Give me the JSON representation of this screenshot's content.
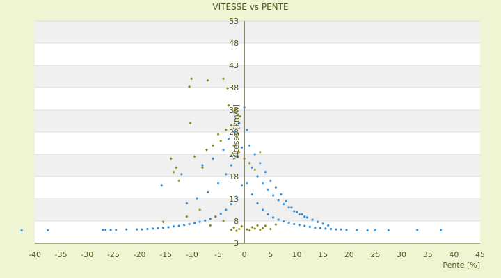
{
  "chart_data": {
    "type": "scatter",
    "title": "VITESSE vs PENTE",
    "xlabel": "Pente [%]",
    "ylabel": "Vitesse [km/h]",
    "xlim": [
      -40,
      45
    ],
    "ylim": [
      3,
      53
    ],
    "x_ticks": [
      "-40",
      "-35",
      "-30",
      "-25",
      "-20",
      "-15",
      "-10",
      "-5",
      "0",
      "5",
      "10",
      "15",
      "20",
      "25",
      "30",
      "35",
      "40",
      "45"
    ],
    "y_ticks": [
      "3",
      "8",
      "13",
      "18",
      "23",
      "28",
      "33",
      "38",
      "43",
      "48",
      "53"
    ],
    "grid": "horizontal bands",
    "legend": "none",
    "colors": {
      "background": "#eff5d2",
      "band_light": "#ffffff",
      "band_dark": "#f0f0f0",
      "grid_line": "#c8c8c8",
      "axis": "#555b1e",
      "text": "#555b1e"
    },
    "series": [
      {
        "color": "#3a8fd9",
        "marker": "dot",
        "points": [
          [
            -42.5,
            5.9
          ],
          [
            -37.5,
            5.9
          ],
          [
            -27,
            6.0
          ],
          [
            -26.5,
            6.0
          ],
          [
            -25.5,
            6.0
          ],
          [
            -24.5,
            6.0
          ],
          [
            -22.5,
            6.1
          ],
          [
            -20.5,
            6.1
          ],
          [
            -19.5,
            6.1
          ],
          [
            -18.5,
            6.2
          ],
          [
            -17.5,
            6.3
          ],
          [
            -16.5,
            6.4
          ],
          [
            -15.5,
            6.5
          ],
          [
            -14.5,
            6.6
          ],
          [
            -13.5,
            6.8
          ],
          [
            -12.5,
            6.9
          ],
          [
            -11.5,
            7.1
          ],
          [
            -10.5,
            7.3
          ],
          [
            -9.5,
            7.5
          ],
          [
            -8.5,
            7.8
          ],
          [
            -7.5,
            8.1
          ],
          [
            -6.5,
            8.5
          ],
          [
            -5.5,
            9.0
          ],
          [
            -4.5,
            9.6
          ],
          [
            -3.5,
            10.5
          ],
          [
            -2.5,
            11.8
          ],
          [
            -1.5,
            13.5
          ],
          [
            -0.5,
            16.0
          ],
          [
            0.5,
            16.5
          ],
          [
            1.5,
            14.0
          ],
          [
            2.5,
            12.0
          ],
          [
            3.5,
            10.5
          ],
          [
            4.5,
            9.5
          ],
          [
            5.5,
            8.8
          ],
          [
            6.5,
            8.3
          ],
          [
            7.5,
            7.9
          ],
          [
            8.5,
            7.6
          ],
          [
            9.5,
            7.3
          ],
          [
            10.5,
            7.1
          ],
          [
            11.5,
            6.9
          ],
          [
            12.5,
            6.7
          ],
          [
            13.5,
            6.5
          ],
          [
            14.5,
            6.4
          ],
          [
            15.5,
            6.3
          ],
          [
            16.5,
            6.2
          ],
          [
            17.5,
            6.1
          ],
          [
            18.5,
            6.1
          ],
          [
            19.5,
            6.0
          ],
          [
            21.5,
            5.9
          ],
          [
            23.5,
            5.9
          ],
          [
            25,
            5.9
          ],
          [
            27.5,
            5.9
          ],
          [
            33,
            6.0
          ],
          [
            37.5,
            5.9
          ],
          [
            -15.8,
            16.0
          ],
          [
            -12,
            18.5
          ],
          [
            -8,
            20.5
          ],
          [
            -6,
            22.0
          ],
          [
            -4,
            24.0
          ],
          [
            -3,
            26.5
          ],
          [
            -2,
            28.0
          ],
          [
            -1,
            30.0
          ],
          [
            0,
            33.5
          ],
          [
            0.5,
            28.5
          ],
          [
            1,
            25.0
          ],
          [
            2,
            23.0
          ],
          [
            3,
            21.0
          ],
          [
            4,
            19.0
          ],
          [
            5,
            17.0
          ],
          [
            6,
            15.5
          ],
          [
            7,
            14.0
          ],
          [
            8,
            12.5
          ],
          [
            9,
            11.0
          ],
          [
            10,
            10.0
          ],
          [
            11,
            9.5
          ],
          [
            12,
            8.8
          ],
          [
            13,
            8.3
          ],
          [
            14,
            7.8
          ],
          [
            15,
            7.4
          ],
          [
            16,
            7.0
          ],
          [
            -11,
            12.0
          ],
          [
            -9,
            13.0
          ],
          [
            -7,
            14.5
          ],
          [
            -5,
            16.5
          ],
          [
            -3.5,
            18.5
          ],
          [
            -2.5,
            20.5
          ],
          [
            -1.5,
            22.5
          ],
          [
            -0.5,
            24.5
          ],
          [
            1.5,
            20.0
          ],
          [
            2.5,
            18.0
          ],
          [
            3.5,
            16.5
          ],
          [
            4.5,
            15.0
          ],
          [
            5.5,
            13.8
          ],
          [
            6.5,
            12.7
          ],
          [
            7.5,
            11.8
          ],
          [
            8.5,
            11.0
          ],
          [
            9.5,
            10.2
          ],
          [
            10.5,
            9.5
          ],
          [
            11.5,
            9.0
          ]
        ]
      },
      {
        "color": "#8a8a14",
        "marker": "diamond",
        "points": [
          [
            -10.1,
            40.0
          ],
          [
            -10.5,
            38.2
          ],
          [
            -7.0,
            39.6
          ],
          [
            -4.0,
            40.0
          ],
          [
            -3.2,
            37.8
          ],
          [
            -10.3,
            30.0
          ],
          [
            -3.0,
            34.0
          ],
          [
            -1.8,
            33.0
          ],
          [
            -0.8,
            31.5
          ],
          [
            -14.0,
            22.0
          ],
          [
            -13.0,
            20.0
          ],
          [
            -13.5,
            19.0
          ],
          [
            -12.5,
            17.0
          ],
          [
            -9.5,
            22.5
          ],
          [
            -8.0,
            20.0
          ],
          [
            -7.2,
            24.0
          ],
          [
            -6.0,
            25.0
          ],
          [
            -5.0,
            27.5
          ],
          [
            -4.5,
            26.0
          ],
          [
            -3.5,
            28.5
          ],
          [
            -2.5,
            29.5
          ],
          [
            -2.0,
            25.0
          ],
          [
            -1.5,
            27.0
          ],
          [
            -1.0,
            23.5
          ],
          [
            0.0,
            22.0
          ],
          [
            1.0,
            21.0
          ],
          [
            2.0,
            19.5
          ],
          [
            3.0,
            23.5
          ],
          [
            -2.5,
            6.0
          ],
          [
            -2.0,
            6.5
          ],
          [
            -1.5,
            5.8
          ],
          [
            -1.0,
            6.2
          ],
          [
            -0.5,
            6.8
          ],
          [
            0.5,
            6.1
          ],
          [
            1.0,
            5.9
          ],
          [
            1.5,
            6.6
          ],
          [
            2.0,
            6.3
          ],
          [
            2.5,
            7.0
          ],
          [
            3.0,
            6.0
          ],
          [
            3.5,
            6.4
          ],
          [
            4.0,
            6.9
          ],
          [
            5.0,
            6.2
          ],
          [
            6.0,
            7.2
          ],
          [
            -5.5,
            9.0
          ],
          [
            -8.5,
            10.5
          ],
          [
            -11.0,
            9.0
          ],
          [
            -15.5,
            7.8
          ],
          [
            -6.5,
            7.0
          ],
          [
            -4.0,
            8.0
          ]
        ]
      }
    ]
  }
}
